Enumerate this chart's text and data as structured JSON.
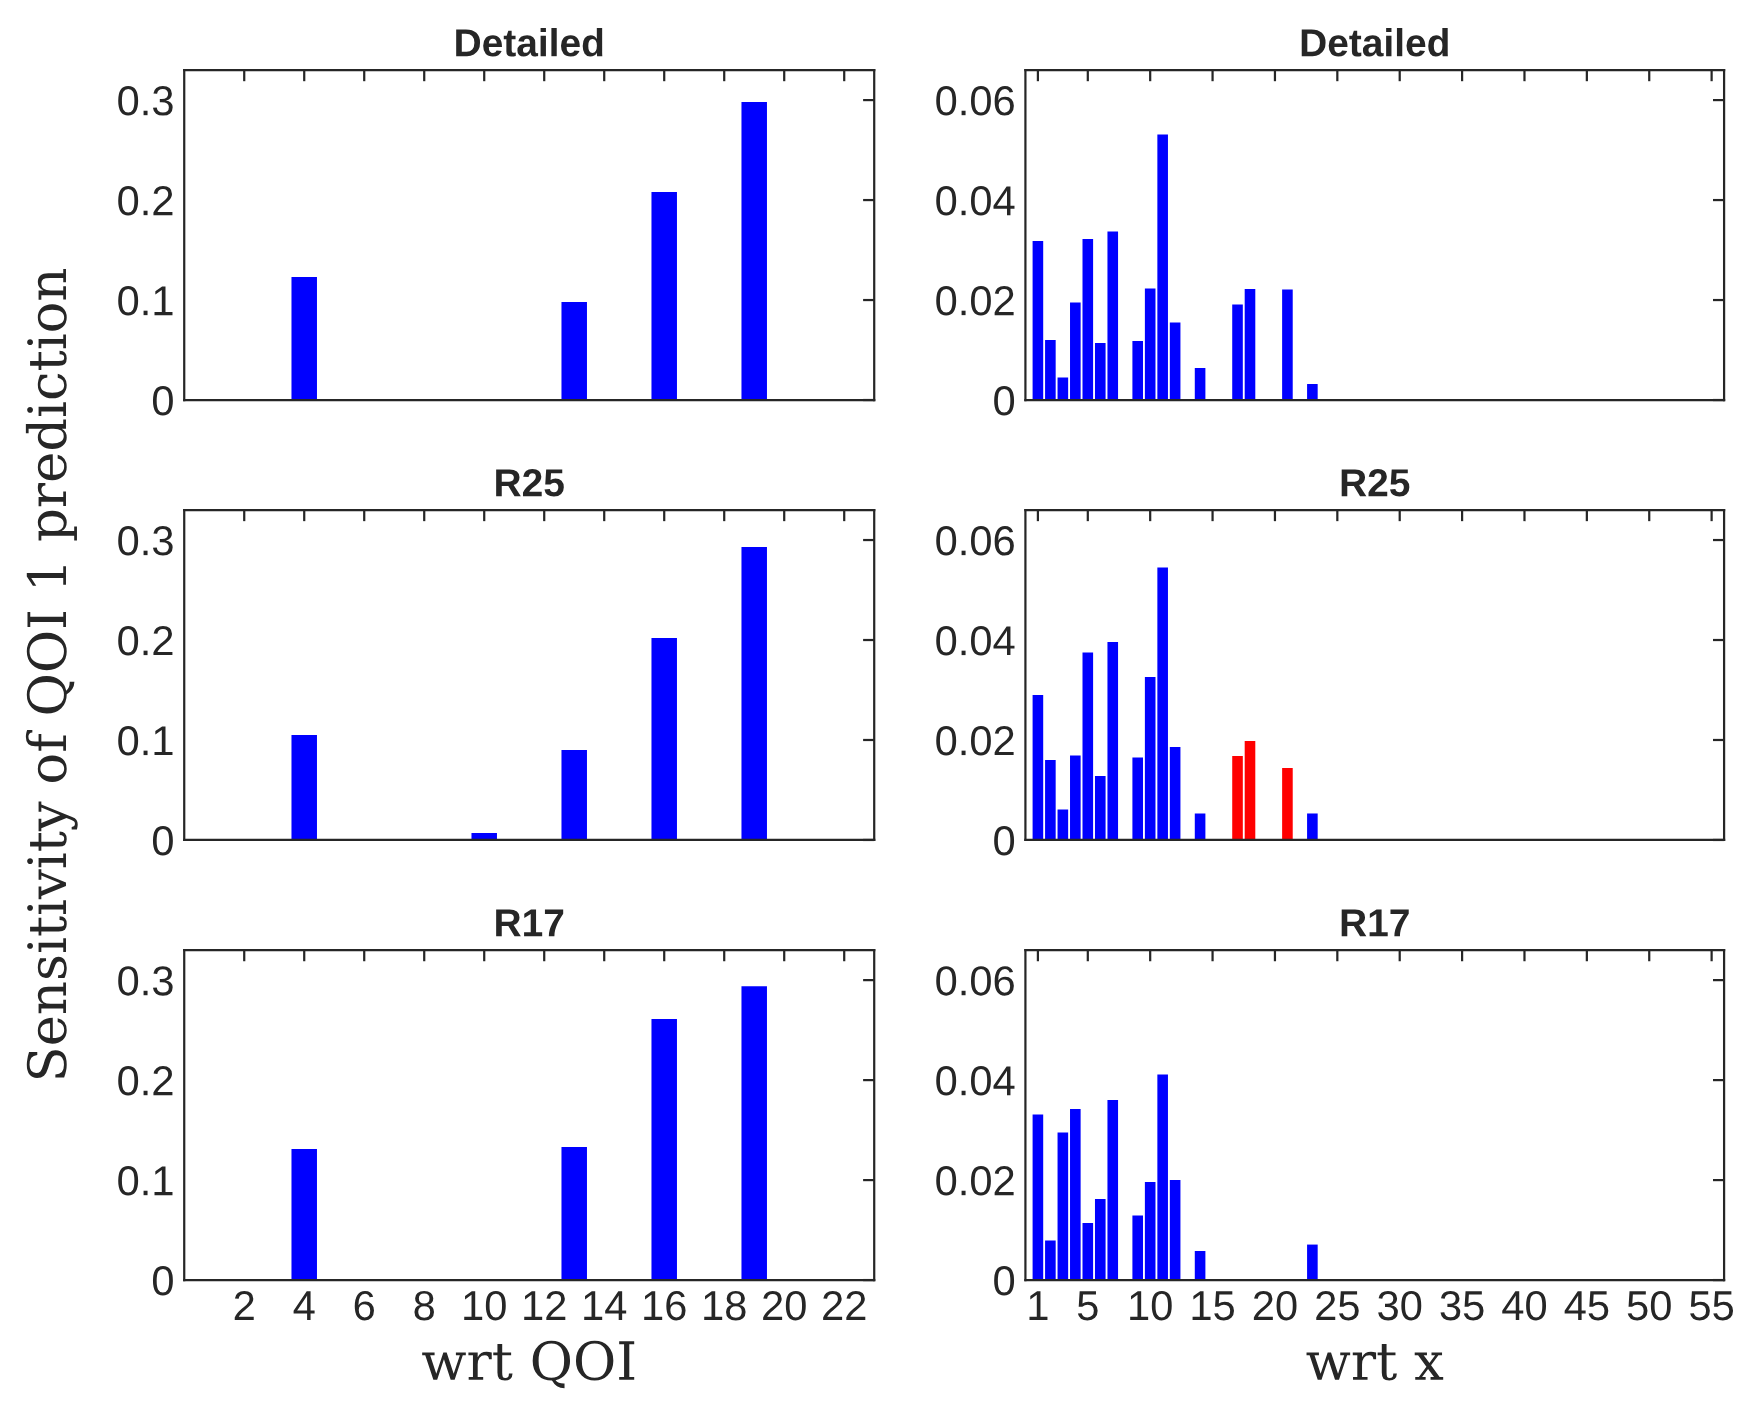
{
  "chart_data": [
    {
      "type": "bar",
      "title": "Detailed",
      "x": [
        4,
        13,
        16,
        19
      ],
      "values": [
        0.123,
        0.098,
        0.208,
        0.298
      ],
      "colors": [
        "#0000ff",
        "#0000ff",
        "#0000ff",
        "#0000ff"
      ],
      "xlim": [
        0,
        23
      ],
      "xticks": [
        2,
        4,
        6,
        8,
        10,
        12,
        14,
        16,
        18,
        20,
        22
      ],
      "ylim": [
        0,
        0.33
      ],
      "yticks": [
        0,
        0.1,
        0.2,
        0.3
      ],
      "tick_labels": "y"
    },
    {
      "type": "bar",
      "title": "Detailed",
      "x": [
        1,
        2,
        3,
        4,
        5,
        6,
        7,
        9,
        10,
        11,
        12,
        14,
        17,
        18,
        21,
        23
      ],
      "values": [
        0.0318,
        0.012,
        0.0045,
        0.0195,
        0.0322,
        0.0114,
        0.0337,
        0.0118,
        0.0223,
        0.0531,
        0.0155,
        0.0064,
        0.0191,
        0.0222,
        0.0221,
        0.0032
      ],
      "colors": [
        "#0000ff",
        "#0000ff",
        "#0000ff",
        "#0000ff",
        "#0000ff",
        "#0000ff",
        "#0000ff",
        "#0000ff",
        "#0000ff",
        "#0000ff",
        "#0000ff",
        "#0000ff",
        "#0000ff",
        "#0000ff",
        "#0000ff",
        "#0000ff"
      ],
      "xlim": [
        0,
        56
      ],
      "xticks": [
        1,
        5,
        10,
        15,
        20,
        25,
        30,
        35,
        40,
        45,
        50,
        55
      ],
      "ylim": [
        0,
        0.066
      ],
      "yticks": [
        0,
        0.02,
        0.04,
        0.06
      ],
      "tick_labels": "y"
    },
    {
      "type": "bar",
      "title": "R25",
      "ylabel": "Sensitivity of QOI 1 prediction",
      "x": [
        4,
        10,
        13,
        16,
        19
      ],
      "values": [
        0.105,
        0.007,
        0.09,
        0.202,
        0.293
      ],
      "colors": [
        "#0000ff",
        "#0000ff",
        "#0000ff",
        "#0000ff",
        "#0000ff"
      ],
      "xlim": [
        0,
        23
      ],
      "xticks": [
        2,
        4,
        6,
        8,
        10,
        12,
        14,
        16,
        18,
        20,
        22
      ],
      "ylim": [
        0,
        0.33
      ],
      "yticks": [
        0,
        0.1,
        0.2,
        0.3
      ],
      "tick_labels": "y"
    },
    {
      "type": "bar",
      "title": "R25",
      "x": [
        1,
        2,
        3,
        4,
        5,
        6,
        7,
        9,
        10,
        11,
        12,
        14,
        17,
        18,
        21,
        23
      ],
      "values": [
        0.029,
        0.016,
        0.0061,
        0.0169,
        0.0375,
        0.0128,
        0.0396,
        0.0165,
        0.0326,
        0.0545,
        0.0186,
        0.0053,
        0.0168,
        0.0198,
        0.0144,
        0.0053
      ],
      "colors": [
        "#0000ff",
        "#0000ff",
        "#0000ff",
        "#0000ff",
        "#0000ff",
        "#0000ff",
        "#0000ff",
        "#0000ff",
        "#0000ff",
        "#0000ff",
        "#0000ff",
        "#0000ff",
        "#ff0000",
        "#ff0000",
        "#ff0000",
        "#0000ff"
      ],
      "xlim": [
        0,
        56
      ],
      "xticks": [
        1,
        5,
        10,
        15,
        20,
        25,
        30,
        35,
        40,
        45,
        50,
        55
      ],
      "ylim": [
        0,
        0.066
      ],
      "yticks": [
        0,
        0.02,
        0.04,
        0.06
      ],
      "tick_labels": "y"
    },
    {
      "type": "bar",
      "title": "R17",
      "xlabel": "wrt QOI",
      "x": [
        4,
        13,
        16,
        19
      ],
      "values": [
        0.131,
        0.133,
        0.261,
        0.294
      ],
      "colors": [
        "#0000ff",
        "#0000ff",
        "#0000ff",
        "#0000ff"
      ],
      "xlim": [
        0,
        23
      ],
      "xticks": [
        2,
        4,
        6,
        8,
        10,
        12,
        14,
        16,
        18,
        20,
        22
      ],
      "ylim": [
        0,
        0.33
      ],
      "yticks": [
        0,
        0.1,
        0.2,
        0.3
      ]
    },
    {
      "type": "bar",
      "title": "R17",
      "xlabel": "wrt x",
      "x": [
        1,
        2,
        3,
        4,
        5,
        6,
        7,
        9,
        10,
        11,
        12,
        14,
        23
      ],
      "values": [
        0.0331,
        0.0079,
        0.0295,
        0.0342,
        0.0114,
        0.0162,
        0.036,
        0.0129,
        0.0196,
        0.0411,
        0.02,
        0.0058,
        0.0071
      ],
      "colors": [
        "#0000ff",
        "#0000ff",
        "#0000ff",
        "#0000ff",
        "#0000ff",
        "#0000ff",
        "#0000ff",
        "#0000ff",
        "#0000ff",
        "#0000ff",
        "#0000ff",
        "#0000ff",
        "#0000ff"
      ],
      "xlim": [
        0,
        56
      ],
      "xticks": [
        1,
        5,
        10,
        15,
        20,
        25,
        30,
        35,
        40,
        45,
        50,
        55
      ],
      "ylim": [
        0,
        0.066
      ],
      "yticks": [
        0,
        0.02,
        0.04,
        0.06
      ]
    }
  ]
}
